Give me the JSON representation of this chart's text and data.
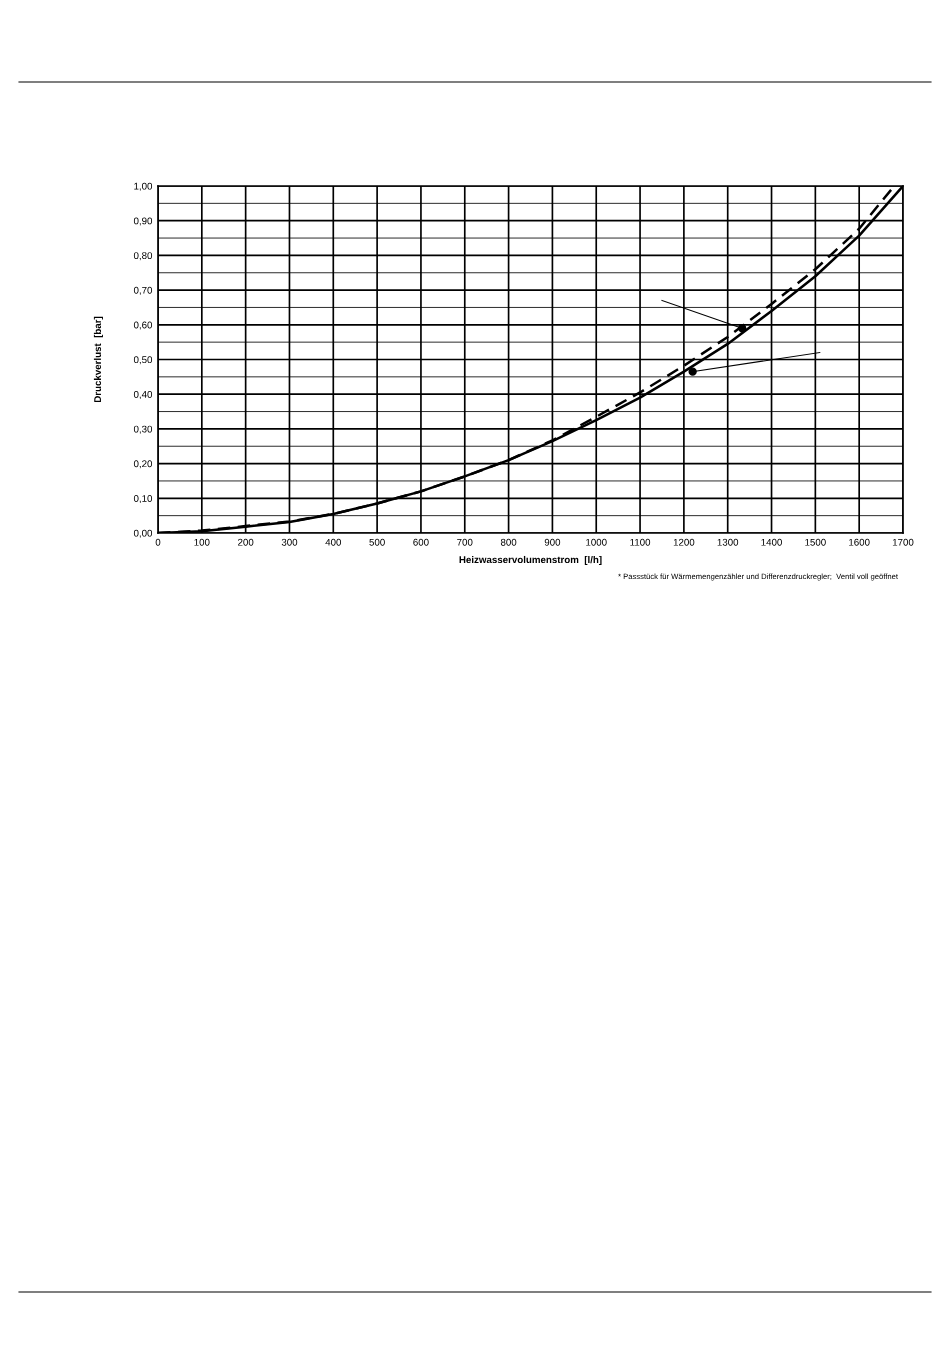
{
  "chart_data": {
    "type": "line",
    "xlabel": "Heizwasservolumenstrom  [l/h]",
    "ylabel": "Druckverlust  [bar]",
    "xlim": [
      0,
      1700
    ],
    "xticks": [
      0,
      100,
      200,
      300,
      400,
      500,
      600,
      700,
      800,
      900,
      1000,
      1100,
      1200,
      1300,
      1400,
      1500,
      1600,
      1700
    ],
    "ylim": [
      0,
      1.0
    ],
    "yticks": [
      {
        "value": 0,
        "label": "0,00"
      },
      {
        "value": 0.05,
        "label": null
      },
      {
        "value": 0.1,
        "label": "0,10"
      },
      {
        "value": 0.15,
        "label": null
      },
      {
        "value": 0.2,
        "label": "0,20"
      },
      {
        "value": 0.25,
        "label": null
      },
      {
        "value": 0.3,
        "label": "0,30"
      },
      {
        "value": 0.35,
        "label": null
      },
      {
        "value": 0.4,
        "label": "0,40"
      },
      {
        "value": 0.45,
        "label": null
      },
      {
        "value": 0.5,
        "label": "0,50"
      },
      {
        "value": 0.55,
        "label": null
      },
      {
        "value": 0.6,
        "label": "0,60"
      },
      {
        "value": 0.65,
        "label": null
      },
      {
        "value": 0.7,
        "label": "0,70"
      },
      {
        "value": 0.75,
        "label": null
      },
      {
        "value": 0.8,
        "label": "0,80"
      },
      {
        "value": 0.85,
        "label": null
      },
      {
        "value": 0.9,
        "label": "0,90"
      },
      {
        "value": 0.95,
        "label": null
      },
      {
        "value": 1.0,
        "label": "1,00"
      }
    ],
    "grid": true,
    "series": [
      {
        "color": "#000000",
        "line_style": "solid",
        "x": [
          0,
          100,
          200,
          300,
          400,
          500,
          600,
          700,
          800,
          900,
          1000,
          1100,
          1200,
          1300,
          1400,
          1500,
          1600,
          1700
        ],
        "values": [
          0,
          0.005,
          0.018,
          0.032,
          0.055,
          0.085,
          0.12,
          0.163,
          0.21,
          0.265,
          0.325,
          0.39,
          0.465,
          0.545,
          0.64,
          0.74,
          0.857,
          1.0
        ]
      },
      {
        "color": "#000000",
        "line_style": "dashed",
        "x": [
          0,
          100,
          200,
          300,
          400,
          500,
          600,
          700,
          800,
          900,
          1000,
          1100,
          1200,
          1300,
          1400,
          1500,
          1600,
          1680
        ],
        "values": [
          0,
          0.007,
          0.02,
          0.033,
          0.055,
          0.085,
          0.12,
          0.163,
          0.21,
          0.267,
          0.335,
          0.405,
          0.482,
          0.565,
          0.66,
          0.76,
          0.877,
          1.0
        ]
      }
    ],
    "annotations": [
      "* Passstück für Wärmemengenzähler und Differenzdruckregler;  Ventil voll geöffnet"
    ]
  }
}
